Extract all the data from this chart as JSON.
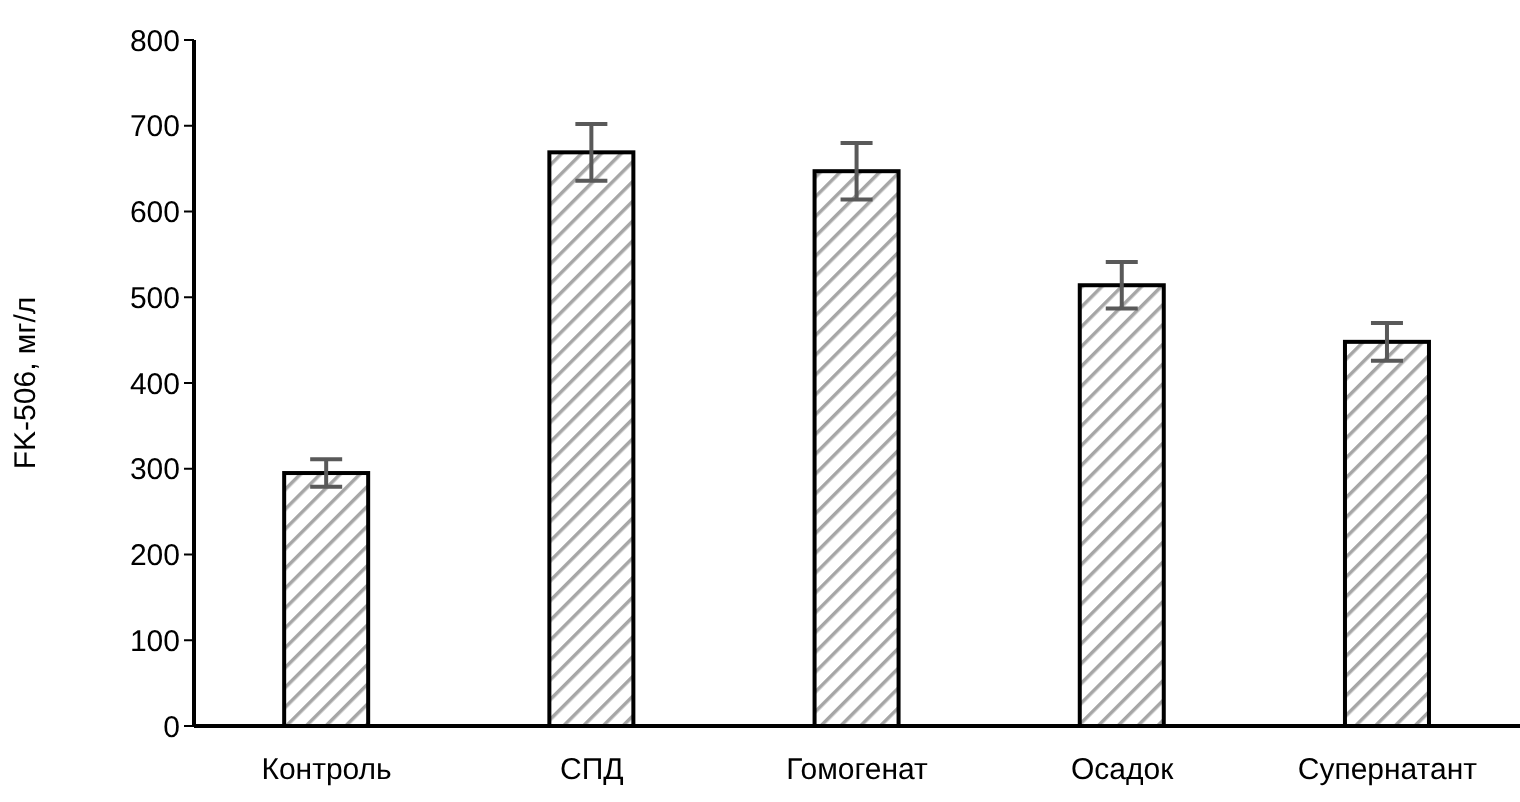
{
  "chart_data": {
    "type": "bar",
    "ylabel": "FK-506, мг/л",
    "categories": [
      "Контроль",
      "СПД",
      "Гомогенат",
      "Осадок",
      "Супернатант"
    ],
    "series": [
      {
        "color": "#000000",
        "values": [
          295,
          669,
          647,
          514,
          448
        ],
        "errors": [
          16,
          33,
          33,
          27,
          22
        ]
      }
    ],
    "ylim": [
      0,
      800
    ],
    "yticks": [
      0,
      100,
      200,
      300,
      400,
      500,
      600,
      700,
      800
    ],
    "grid": false,
    "legend": false
  }
}
